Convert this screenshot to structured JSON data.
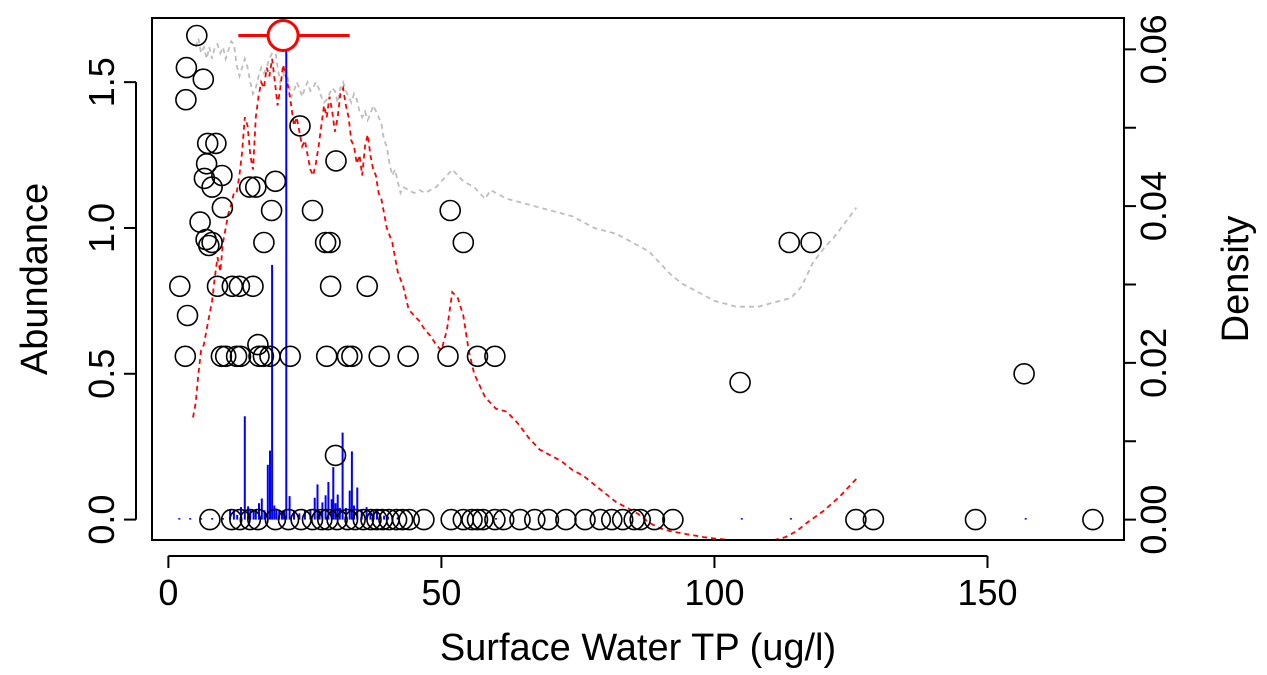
{
  "chart_data": {
    "type": "scatter",
    "xlabel": "Surface Water TP (ug/l)",
    "ylabel": "Abundance",
    "y2label": "Density",
    "xlim": [
      -3,
      175
    ],
    "ylim": [
      -0.07,
      1.72
    ],
    "y2lim": [
      -0.0026,
      0.064
    ],
    "x_ticks": [
      0,
      50,
      100,
      150
    ],
    "y_ticks": [
      0.0,
      0.5,
      1.0,
      1.5
    ],
    "y2_ticks": [
      0.0,
      0.02,
      0.04,
      0.06
    ],
    "x_tick_labels": [
      "0",
      "50",
      "100",
      "150"
    ],
    "y_tick_labels": [
      "0.0",
      "0.5",
      "1.0",
      "1.5"
    ],
    "y2_tick_labels": [
      "0.00",
      "0.02",
      "0.04",
      "0.06"
    ],
    "grid": false,
    "colors": {
      "points": "#000000",
      "optimum": "#ff0000",
      "density_bars": "#0000ff",
      "fitted_line": "#ff0000",
      "reference_line": "#bebebe"
    },
    "optimum": {
      "x": 21,
      "y": 1.66,
      "x_range": [
        12.8,
        33.2
      ]
    },
    "points": [
      [
        5.2,
        1.66
      ],
      [
        3.3,
        1.55
      ],
      [
        3.2,
        1.44
      ],
      [
        6.4,
        1.51
      ],
      [
        24.1,
        1.35
      ],
      [
        7.2,
        1.29
      ],
      [
        8.7,
        1.29
      ],
      [
        9.8,
        1.18
      ],
      [
        7.0,
        1.22
      ],
      [
        6.6,
        1.17
      ],
      [
        30.7,
        1.23
      ],
      [
        8.0,
        1.14
      ],
      [
        14.9,
        1.14
      ],
      [
        16.0,
        1.14
      ],
      [
        19.6,
        1.16
      ],
      [
        9.9,
        1.07
      ],
      [
        18.9,
        1.06
      ],
      [
        26.4,
        1.06
      ],
      [
        51.6,
        1.06
      ],
      [
        5.8,
        1.02
      ],
      [
        6.9,
        0.96
      ],
      [
        7.4,
        0.94
      ],
      [
        8.0,
        0.95
      ],
      [
        17.5,
        0.95
      ],
      [
        28.8,
        0.95
      ],
      [
        29.6,
        0.95
      ],
      [
        54.0,
        0.95
      ],
      [
        113.7,
        0.95
      ],
      [
        117.7,
        0.95
      ],
      [
        2.1,
        0.8
      ],
      [
        9.0,
        0.8
      ],
      [
        11.7,
        0.8
      ],
      [
        13.0,
        0.8
      ],
      [
        15.5,
        0.8
      ],
      [
        29.7,
        0.8
      ],
      [
        36.4,
        0.8
      ],
      [
        3.5,
        0.7
      ],
      [
        16.4,
        0.6
      ],
      [
        3.1,
        0.56
      ],
      [
        9.7,
        0.56
      ],
      [
        10.5,
        0.56
      ],
      [
        12.5,
        0.56
      ],
      [
        13.2,
        0.56
      ],
      [
        16.6,
        0.56
      ],
      [
        17.4,
        0.56
      ],
      [
        18.6,
        0.56
      ],
      [
        22.3,
        0.56
      ],
      [
        29.0,
        0.56
      ],
      [
        32.8,
        0.56
      ],
      [
        33.6,
        0.56
      ],
      [
        38.6,
        0.56
      ],
      [
        43.9,
        0.56
      ],
      [
        51.2,
        0.56
      ],
      [
        56.6,
        0.56
      ],
      [
        59.8,
        0.56
      ],
      [
        104.7,
        0.47
      ],
      [
        156.7,
        0.5
      ],
      [
        30.6,
        0.22
      ],
      [
        7.6,
        0.0
      ],
      [
        11.6,
        0.0
      ],
      [
        13.1,
        0.0
      ],
      [
        15.0,
        0.0
      ],
      [
        16.4,
        0.0
      ],
      [
        19.6,
        0.0
      ],
      [
        22.0,
        0.0
      ],
      [
        24.3,
        0.0
      ],
      [
        26.4,
        0.0
      ],
      [
        28.1,
        0.0
      ],
      [
        29.2,
        0.0
      ],
      [
        30.9,
        0.0
      ],
      [
        32.8,
        0.0
      ],
      [
        34.2,
        0.0
      ],
      [
        35.7,
        0.0
      ],
      [
        37.1,
        0.0
      ],
      [
        38.2,
        0.0
      ],
      [
        39.2,
        0.0
      ],
      [
        40.4,
        0.0
      ],
      [
        41.8,
        0.0
      ],
      [
        42.9,
        0.0
      ],
      [
        44.1,
        0.0
      ],
      [
        46.8,
        0.0
      ],
      [
        51.8,
        0.0
      ],
      [
        54.0,
        0.0
      ],
      [
        55.6,
        0.0
      ],
      [
        56.6,
        0.0
      ],
      [
        57.6,
        0.0
      ],
      [
        59.8,
        0.0
      ],
      [
        61.4,
        0.0
      ],
      [
        64.4,
        0.0
      ],
      [
        67.1,
        0.0
      ],
      [
        69.6,
        0.0
      ],
      [
        72.8,
        0.0
      ],
      [
        76.3,
        0.0
      ],
      [
        79.1,
        0.0
      ],
      [
        81.2,
        0.0
      ],
      [
        83.2,
        0.0
      ],
      [
        85.3,
        0.0
      ],
      [
        86.4,
        0.0
      ],
      [
        89.0,
        0.0
      ],
      [
        92.4,
        0.0
      ],
      [
        125.9,
        0.0
      ],
      [
        129.1,
        0.0
      ],
      [
        147.8,
        0.0
      ],
      [
        169.3,
        0.0
      ]
    ],
    "density_bars": [
      [
        11.3,
        0.0012
      ],
      [
        12.0,
        0.0012
      ],
      [
        12.6,
        0.0006
      ],
      [
        13.3,
        0.0016
      ],
      [
        14.0,
        0.0132
      ],
      [
        14.6,
        0.0017
      ],
      [
        15.0,
        0.0012
      ],
      [
        15.6,
        0.0011
      ],
      [
        16.0,
        0.0012
      ],
      [
        16.6,
        0.0021
      ],
      [
        17.1,
        0.0027
      ],
      [
        17.6,
        0.0012
      ],
      [
        18.2,
        0.007
      ],
      [
        18.6,
        0.0088
      ],
      [
        19.0,
        0.0325
      ],
      [
        19.4,
        0.0018
      ],
      [
        19.8,
        0.0014
      ],
      [
        20.3,
        0.0011
      ],
      [
        20.8,
        0.0008
      ],
      [
        21.2,
        0.0011
      ],
      [
        21.6,
        0.0627
      ],
      [
        22.2,
        0.003
      ],
      [
        23.0,
        0.0012
      ],
      [
        24.0,
        0.0008
      ],
      [
        25.0,
        0.0012
      ],
      [
        26.0,
        0.0012
      ],
      [
        26.8,
        0.0028
      ],
      [
        27.3,
        0.0045
      ],
      [
        27.7,
        0.0011
      ],
      [
        28.2,
        0.0022
      ],
      [
        28.8,
        0.0031
      ],
      [
        29.3,
        0.0048
      ],
      [
        29.9,
        0.0026
      ],
      [
        30.2,
        0.0067
      ],
      [
        30.6,
        0.0021
      ],
      [
        31.0,
        0.0032
      ],
      [
        31.4,
        0.0015
      ],
      [
        31.9,
        0.0111
      ],
      [
        32.5,
        0.0015
      ],
      [
        33.2,
        0.0037
      ],
      [
        33.6,
        0.0087
      ],
      [
        34.0,
        0.0018
      ],
      [
        34.6,
        0.0041
      ],
      [
        35.4,
        0.0013
      ],
      [
        36.3,
        0.0016
      ],
      [
        37.0,
        0.0011
      ],
      [
        37.6,
        0.0011
      ],
      [
        38.2,
        0.0012
      ],
      [
        38.8,
        0.0008
      ],
      [
        39.5,
        0.0005
      ],
      [
        40.2,
        0.0004
      ],
      [
        41.0,
        0.0003
      ],
      [
        42.0,
        0.0003
      ],
      [
        2.0,
        0.0002
      ],
      [
        4.0,
        0.0002
      ],
      [
        6.0,
        0.0002
      ],
      [
        8.0,
        0.0002
      ],
      [
        10.0,
        0.0002
      ],
      [
        60.0,
        0.0002
      ],
      [
        105.0,
        0.0002
      ],
      [
        114.0,
        0.0002
      ],
      [
        157.0,
        0.0002
      ]
    ],
    "fitted_curve": [
      [
        4.5,
        0.35
      ],
      [
        5.0,
        0.4
      ],
      [
        5.5,
        0.5
      ],
      [
        6.0,
        0.58
      ],
      [
        6.5,
        0.6
      ],
      [
        7.0,
        0.65
      ],
      [
        7.5,
        0.7
      ],
      [
        8.0,
        0.75
      ],
      [
        8.5,
        0.83
      ],
      [
        9.0,
        0.9
      ],
      [
        9.5,
        0.85
      ],
      [
        10.0,
        0.95
      ],
      [
        10.5,
        1.0
      ],
      [
        11.0,
        1.05
      ],
      [
        11.5,
        1.08
      ],
      [
        12.0,
        1.12
      ],
      [
        12.5,
        1.12
      ],
      [
        13.0,
        1.18
      ],
      [
        13.5,
        1.26
      ],
      [
        14.0,
        1.38
      ],
      [
        14.5,
        1.35
      ],
      [
        15.0,
        1.25
      ],
      [
        15.5,
        1.2
      ],
      [
        16.0,
        1.38
      ],
      [
        16.5,
        1.45
      ],
      [
        17.0,
        1.5
      ],
      [
        17.5,
        1.48
      ],
      [
        18.0,
        1.55
      ],
      [
        18.5,
        1.52
      ],
      [
        19.0,
        1.58
      ],
      [
        19.5,
        1.5
      ],
      [
        20.0,
        1.42
      ],
      [
        20.5,
        1.48
      ],
      [
        21.0,
        1.56
      ],
      [
        21.5,
        1.52
      ],
      [
        22.0,
        1.48
      ],
      [
        22.5,
        1.42
      ],
      [
        23.0,
        1.35
      ],
      [
        23.5,
        1.38
      ],
      [
        24.0,
        1.33
      ],
      [
        24.5,
        1.28
      ],
      [
        25.0,
        1.3
      ],
      [
        25.5,
        1.25
      ],
      [
        26.0,
        1.2
      ],
      [
        26.5,
        1.18
      ],
      [
        27.0,
        1.22
      ],
      [
        27.5,
        1.28
      ],
      [
        28.0,
        1.35
      ],
      [
        28.5,
        1.42
      ],
      [
        29.0,
        1.38
      ],
      [
        29.5,
        1.45
      ],
      [
        30.0,
        1.4
      ],
      [
        30.5,
        1.33
      ],
      [
        31.0,
        1.38
      ],
      [
        31.5,
        1.46
      ],
      [
        32.0,
        1.48
      ],
      [
        32.5,
        1.42
      ],
      [
        33.0,
        1.38
      ],
      [
        33.5,
        1.3
      ],
      [
        34.0,
        1.28
      ],
      [
        34.5,
        1.22
      ],
      [
        35.0,
        1.25
      ],
      [
        35.5,
        1.18
      ],
      [
        36.0,
        1.28
      ],
      [
        36.5,
        1.32
      ],
      [
        37.0,
        1.25
      ],
      [
        37.5,
        1.2
      ],
      [
        38.0,
        1.18
      ],
      [
        38.5,
        1.12
      ],
      [
        39.0,
        1.1
      ],
      [
        39.5,
        1.05
      ],
      [
        40.0,
        1.0
      ],
      [
        41.0,
        0.95
      ],
      [
        42.0,
        0.85
      ],
      [
        43.0,
        0.8
      ],
      [
        44.0,
        0.72
      ],
      [
        45.0,
        0.7
      ],
      [
        46.0,
        0.68
      ],
      [
        47.0,
        0.65
      ],
      [
        48.0,
        0.63
      ],
      [
        49.0,
        0.6
      ],
      [
        50.0,
        0.58
      ],
      [
        51.0,
        0.65
      ],
      [
        52.0,
        0.78
      ],
      [
        53.0,
        0.76
      ],
      [
        54.0,
        0.7
      ],
      [
        55.0,
        0.58
      ],
      [
        56.0,
        0.5
      ],
      [
        57.0,
        0.46
      ],
      [
        58.0,
        0.42
      ],
      [
        60.0,
        0.38
      ],
      [
        62.0,
        0.37
      ],
      [
        64.0,
        0.33
      ],
      [
        66.0,
        0.28
      ],
      [
        68.0,
        0.24
      ],
      [
        70.0,
        0.22
      ],
      [
        72.0,
        0.2
      ],
      [
        74.0,
        0.17
      ],
      [
        76.0,
        0.15
      ],
      [
        78.0,
        0.12
      ],
      [
        80.0,
        0.09
      ],
      [
        82.0,
        0.06
      ],
      [
        84.0,
        0.04
      ],
      [
        86.0,
        0.02
      ],
      [
        88.0,
        -0.01
      ],
      [
        90.0,
        -0.03
      ],
      [
        92.0,
        -0.04
      ],
      [
        95.0,
        -0.05
      ],
      [
        98.0,
        -0.06
      ],
      [
        100.0,
        -0.065
      ],
      [
        103.0,
        -0.07
      ],
      [
        106.0,
        -0.07
      ],
      [
        109.0,
        -0.07
      ],
      [
        111.0,
        -0.07
      ],
      [
        113.0,
        -0.06
      ],
      [
        115.0,
        -0.04
      ],
      [
        117.0,
        -0.01
      ],
      [
        120.0,
        0.03
      ],
      [
        123.0,
        0.08
      ],
      [
        126.0,
        0.14
      ]
    ],
    "reference_curve": [
      [
        5.0,
        1.62
      ],
      [
        5.5,
        1.65
      ],
      [
        6.0,
        1.6
      ],
      [
        6.5,
        1.62
      ],
      [
        7.0,
        1.58
      ],
      [
        7.5,
        1.62
      ],
      [
        8.0,
        1.58
      ],
      [
        8.5,
        1.62
      ],
      [
        9.0,
        1.63
      ],
      [
        9.5,
        1.6
      ],
      [
        10.0,
        1.62
      ],
      [
        10.5,
        1.58
      ],
      [
        11.0,
        1.61
      ],
      [
        11.5,
        1.64
      ],
      [
        12.0,
        1.63
      ],
      [
        12.5,
        1.56
      ],
      [
        13.0,
        1.52
      ],
      [
        13.5,
        1.55
      ],
      [
        14.0,
        1.58
      ],
      [
        14.5,
        1.55
      ],
      [
        15.0,
        1.5
      ],
      [
        15.5,
        1.46
      ],
      [
        16.0,
        1.48
      ],
      [
        16.5,
        1.52
      ],
      [
        17.0,
        1.55
      ],
      [
        17.5,
        1.53
      ],
      [
        18.0,
        1.55
      ],
      [
        18.5,
        1.58
      ],
      [
        19.0,
        1.6
      ],
      [
        19.5,
        1.62
      ],
      [
        20.0,
        1.55
      ],
      [
        20.5,
        1.5
      ],
      [
        21.0,
        1.52
      ],
      [
        21.5,
        1.55
      ],
      [
        22.0,
        1.5
      ],
      [
        22.5,
        1.45
      ],
      [
        23.0,
        1.47
      ],
      [
        23.5,
        1.5
      ],
      [
        24.0,
        1.48
      ],
      [
        24.5,
        1.45
      ],
      [
        25.0,
        1.48
      ],
      [
        25.5,
        1.5
      ],
      [
        26.0,
        1.47
      ],
      [
        26.5,
        1.48
      ],
      [
        27.0,
        1.5
      ],
      [
        27.5,
        1.48
      ],
      [
        28.0,
        1.45
      ],
      [
        28.5,
        1.43
      ],
      [
        29.0,
        1.44
      ],
      [
        29.5,
        1.46
      ],
      [
        30.0,
        1.48
      ],
      [
        30.5,
        1.47
      ],
      [
        31.0,
        1.43
      ],
      [
        31.5,
        1.48
      ],
      [
        32.0,
        1.5
      ],
      [
        32.5,
        1.47
      ],
      [
        33.0,
        1.45
      ],
      [
        33.5,
        1.43
      ],
      [
        34.0,
        1.46
      ],
      [
        34.5,
        1.44
      ],
      [
        35.0,
        1.4
      ],
      [
        35.5,
        1.38
      ],
      [
        36.0,
        1.4
      ],
      [
        36.5,
        1.37
      ],
      [
        37.0,
        1.39
      ],
      [
        37.5,
        1.42
      ],
      [
        38.0,
        1.4
      ],
      [
        38.5,
        1.38
      ],
      [
        39.0,
        1.36
      ],
      [
        39.5,
        1.3
      ],
      [
        40.0,
        1.28
      ],
      [
        40.5,
        1.22
      ],
      [
        41.0,
        1.18
      ],
      [
        41.5,
        1.2
      ],
      [
        42.0,
        1.16
      ],
      [
        42.5,
        1.12
      ],
      [
        43.0,
        1.14
      ],
      [
        44.0,
        1.13
      ],
      [
        45.0,
        1.12
      ],
      [
        46.0,
        1.13
      ],
      [
        47.0,
        1.12
      ],
      [
        48.0,
        1.13
      ],
      [
        49.0,
        1.14
      ],
      [
        50.0,
        1.16
      ],
      [
        51.0,
        1.18
      ],
      [
        52.0,
        1.2
      ],
      [
        53.0,
        1.18
      ],
      [
        54.0,
        1.16
      ],
      [
        55.0,
        1.15
      ],
      [
        56.0,
        1.14
      ],
      [
        57.0,
        1.12
      ],
      [
        58.0,
        1.1
      ],
      [
        59.0,
        1.13
      ],
      [
        60.0,
        1.12
      ],
      [
        62.0,
        1.1
      ],
      [
        64.0,
        1.09
      ],
      [
        66.0,
        1.08
      ],
      [
        68.0,
        1.07
      ],
      [
        70.0,
        1.06
      ],
      [
        72.0,
        1.05
      ],
      [
        74.0,
        1.04
      ],
      [
        76.0,
        1.02
      ],
      [
        78.0,
        1.0
      ],
      [
        80.0,
        0.99
      ],
      [
        82.0,
        0.98
      ],
      [
        84.0,
        0.96
      ],
      [
        86.0,
        0.94
      ],
      [
        88.0,
        0.92
      ],
      [
        90.0,
        0.88
      ],
      [
        92.0,
        0.84
      ],
      [
        94.0,
        0.81
      ],
      [
        96.0,
        0.79
      ],
      [
        98.0,
        0.77
      ],
      [
        100.0,
        0.75
      ],
      [
        102.0,
        0.74
      ],
      [
        104.0,
        0.73
      ],
      [
        106.0,
        0.73
      ],
      [
        108.0,
        0.73
      ],
      [
        110.0,
        0.74
      ],
      [
        112.0,
        0.75
      ],
      [
        114.0,
        0.76
      ],
      [
        116.0,
        0.8
      ],
      [
        118.0,
        0.88
      ],
      [
        120.0,
        0.93
      ],
      [
        122.0,
        0.97
      ],
      [
        124.0,
        1.02
      ],
      [
        126.0,
        1.07
      ]
    ]
  }
}
